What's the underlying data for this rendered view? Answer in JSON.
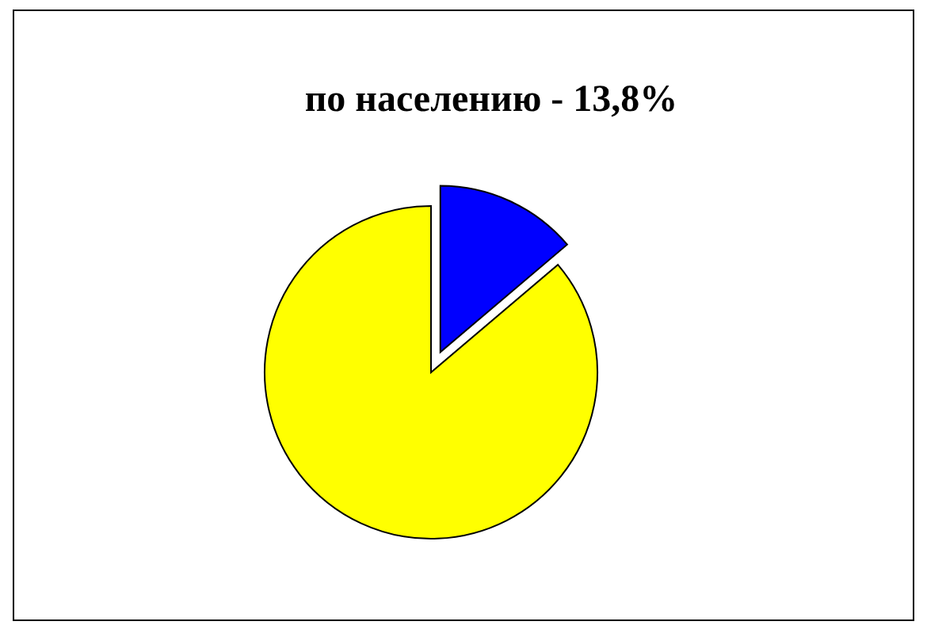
{
  "chart_data": {
    "type": "pie",
    "title": "по населению - 13,8%",
    "categories": [
      null,
      null
    ],
    "values": [
      13.8,
      86.2
    ],
    "colors": [
      "#0000ff",
      "#ffff00"
    ]
  }
}
